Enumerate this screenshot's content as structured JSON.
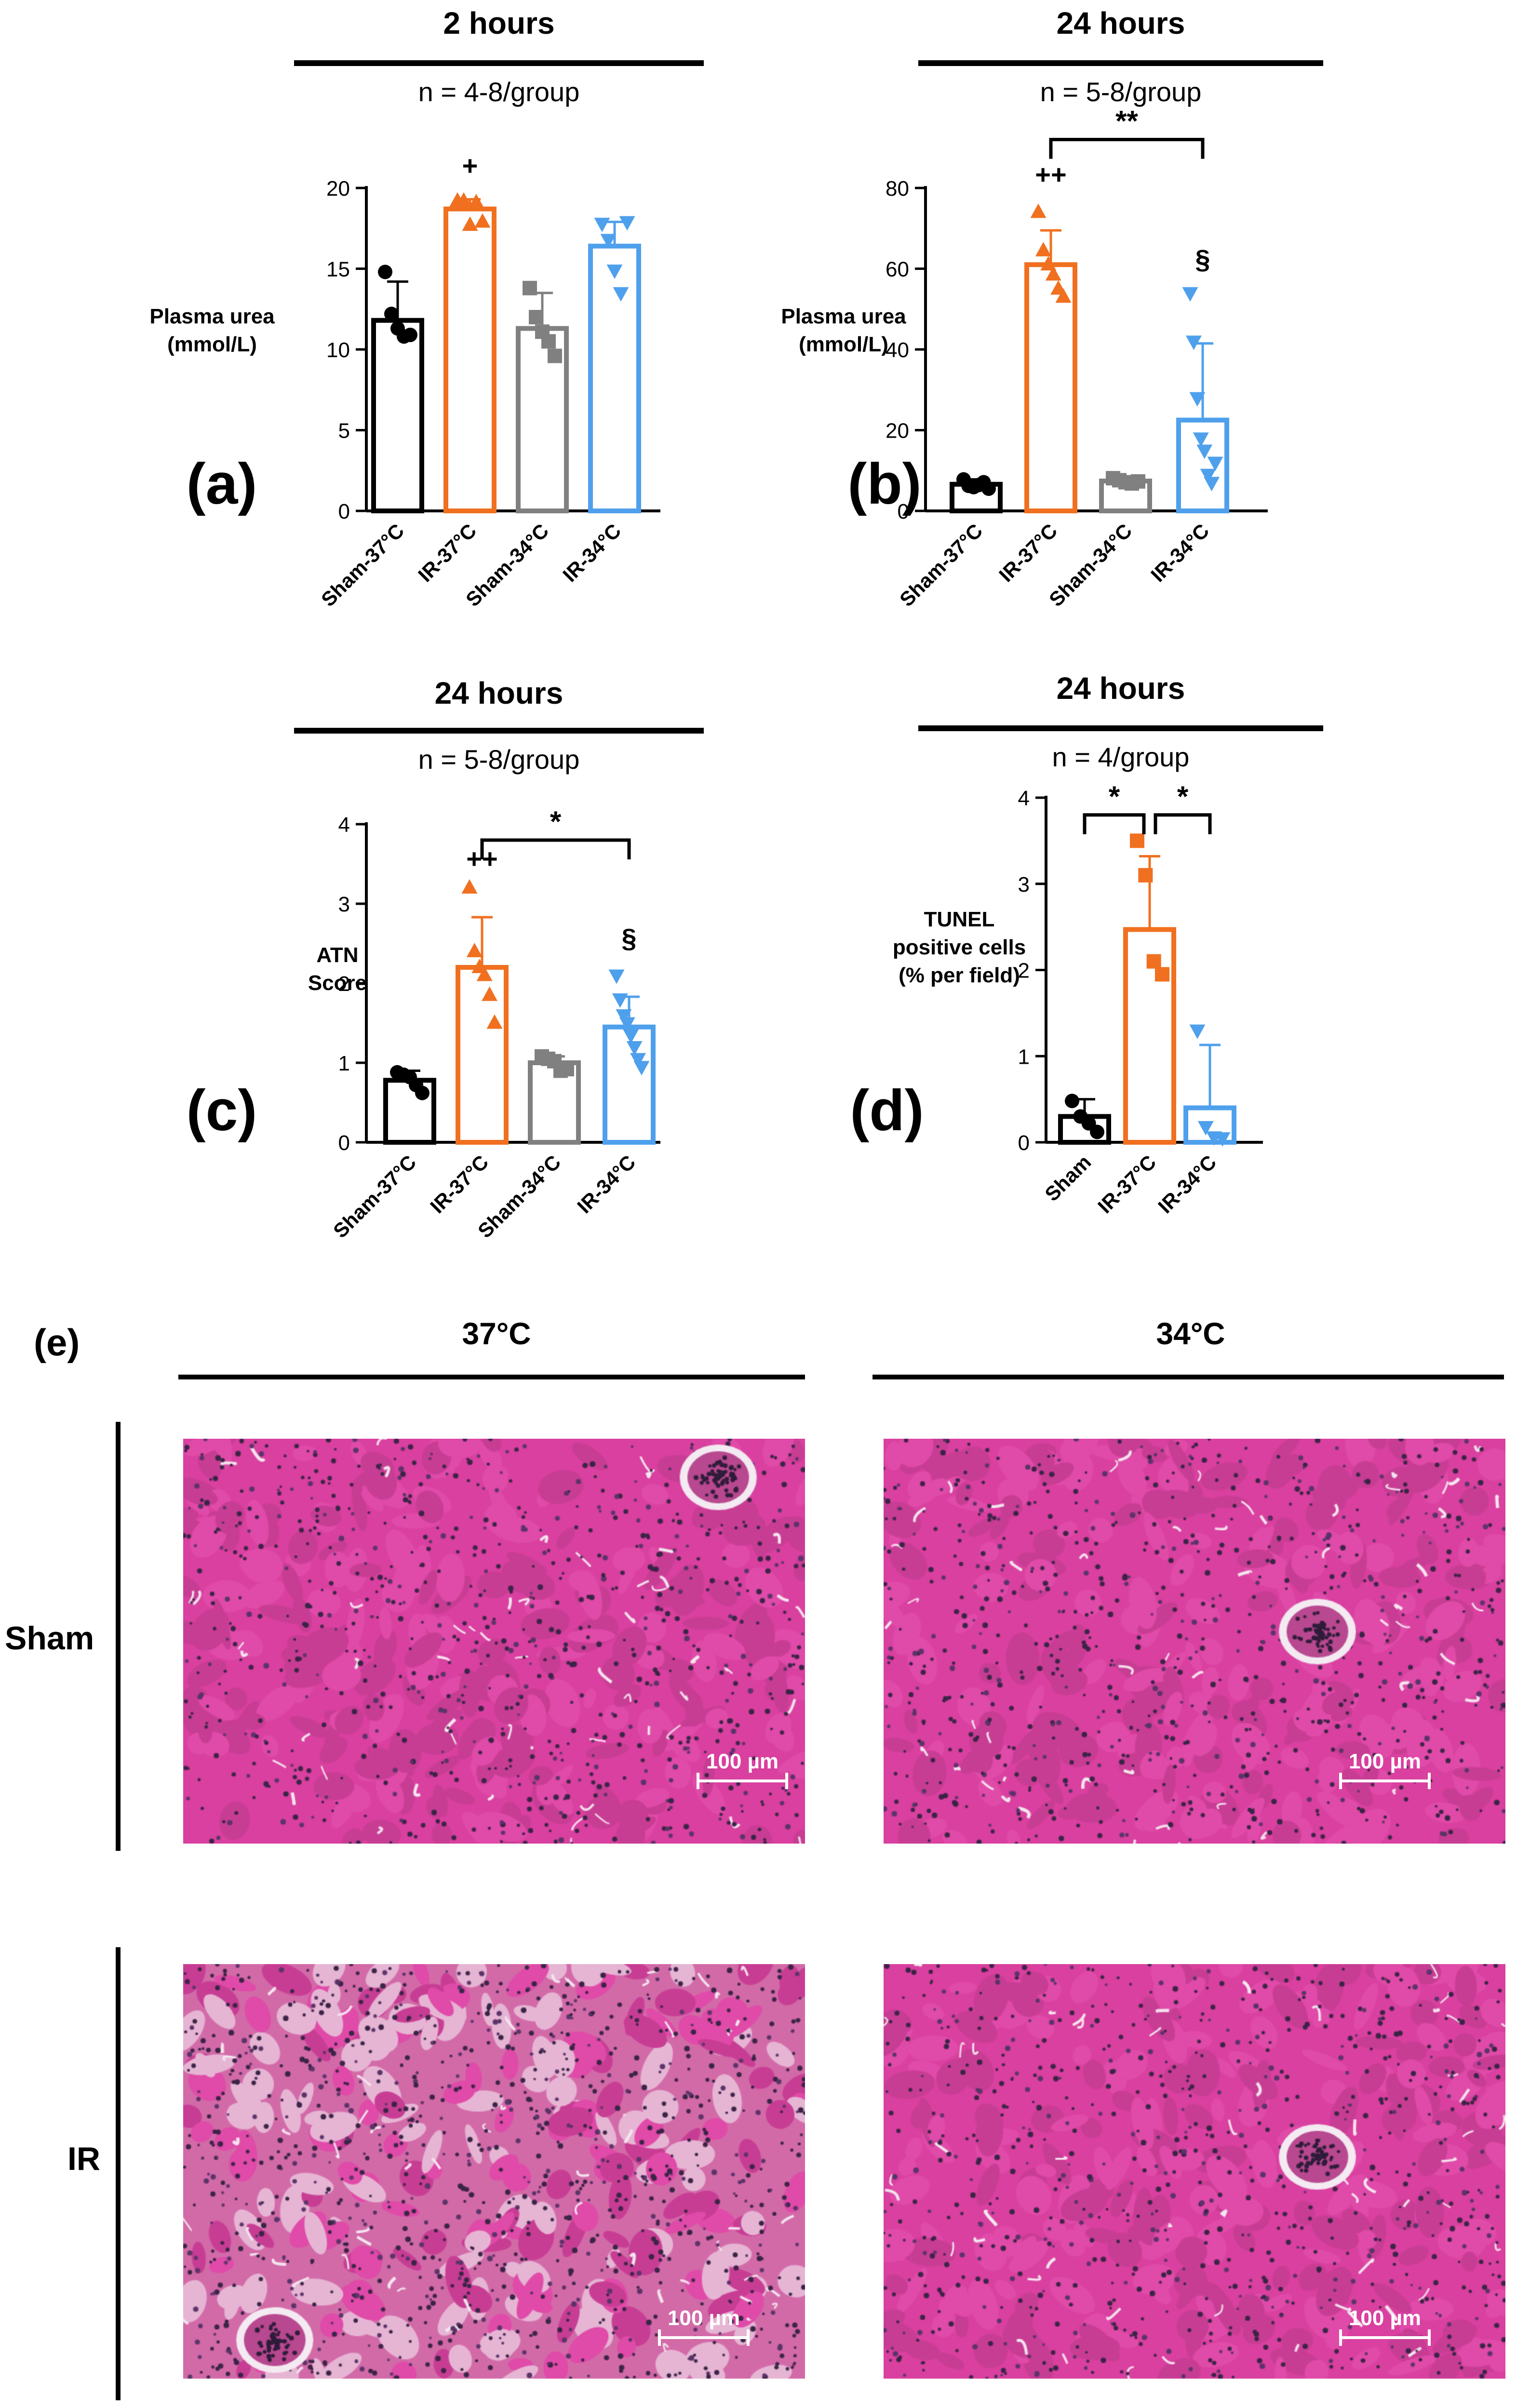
{
  "chart_data": [
    {
      "panel": "(a)",
      "type": "bar",
      "title": "2 hours",
      "subtitle": "n = 4-8/group",
      "ylabel": [
        "Plasma urea",
        "(mmol/L)"
      ],
      "ylim": [
        0,
        20
      ],
      "yticks": [
        0,
        5,
        10,
        15,
        20
      ],
      "categories": [
        "Sham-37°C",
        "IR-37°C",
        "Sham-34°C",
        "IR-34°C"
      ],
      "colors": [
        "#000000",
        "#f07020",
        "#808080",
        "#4fa0ec"
      ],
      "markers": [
        "circle",
        "triangle-up",
        "square",
        "triangle-down"
      ],
      "means": [
        11.8,
        18.7,
        11.3,
        16.4
      ],
      "errors": [
        2.4,
        0.6,
        2.2,
        1.5
      ],
      "points": [
        [
          14.8,
          12.2,
          11.3,
          10.8,
          10.9
        ],
        [
          19.2,
          19.2,
          17.7,
          19.1,
          17.9
        ],
        [
          13.8,
          12.0,
          11.1,
          10.5,
          9.6
        ],
        [
          17.8,
          16.8,
          14.9,
          13.5,
          17.9
        ]
      ],
      "annotations": [
        {
          "category": "IR-37°C",
          "text": "+",
          "y": 20.8
        }
      ],
      "brackets": []
    },
    {
      "panel": "(b)",
      "type": "bar",
      "title": "24 hours",
      "subtitle": "n = 5-8/group",
      "ylabel": [
        "Plasma urea",
        "(mmol/L)"
      ],
      "ylim": [
        0,
        80
      ],
      "yticks": [
        0,
        20,
        40,
        60,
        80
      ],
      "categories": [
        "Sham-37°C",
        "IR-37°C",
        "Sham-34°C",
        "IR-34°C"
      ],
      "colors": [
        "#000000",
        "#f07020",
        "#808080",
        "#4fa0ec"
      ],
      "markers": [
        "circle",
        "triangle-up",
        "square",
        "triangle-down"
      ],
      "means": [
        6.6,
        61.0,
        7.4,
        22.5
      ],
      "errors": [
        1.2,
        8.5,
        0.9,
        19.0
      ],
      "points": [
        [
          7.8,
          6.2,
          5.9,
          6.4,
          7.1,
          5.5
        ],
        [
          74.0,
          64.5,
          61.0,
          58.5,
          55.0,
          53.0
        ],
        [
          8.1,
          7.6,
          7.1,
          6.8,
          7.3
        ],
        [
          54.0,
          42.0,
          28.0,
          18.0,
          15.0,
          9.0,
          7.0,
          12.0
        ]
      ],
      "annotations": [
        {
          "category": "IR-37°C",
          "text": "++",
          "y": 81
        },
        {
          "category": "IR-34°C",
          "text": "§",
          "y": 60
        }
      ],
      "brackets": [
        {
          "from": 1,
          "to": 3,
          "text": "**",
          "y": 92
        }
      ]
    },
    {
      "panel": "(c)",
      "type": "bar",
      "title": "24 hours",
      "subtitle": "n = 5-8/group",
      "ylabel": [
        "ATN",
        "Score"
      ],
      "ylim": [
        0,
        4
      ],
      "yticks": [
        0,
        1,
        2,
        3,
        4
      ],
      "categories": [
        "Sham-37°C",
        "IR-37°C",
        "Sham-34°C",
        "IR-34°C"
      ],
      "colors": [
        "#000000",
        "#f07020",
        "#808080",
        "#4fa0ec"
      ],
      "markers": [
        "circle",
        "triangle-up",
        "square",
        "triangle-down"
      ],
      "means": [
        0.78,
        2.2,
        1.0,
        1.45
      ],
      "errors": [
        0.12,
        0.63,
        0.08,
        0.38
      ],
      "points": [
        [
          0.88,
          0.85,
          0.82,
          0.72,
          0.62
        ],
        [
          3.2,
          2.4,
          2.2,
          2.1,
          1.85,
          1.5
        ],
        [
          1.08,
          1.05,
          1.02,
          0.9,
          0.92
        ],
        [
          2.1,
          1.8,
          1.6,
          1.5,
          1.35,
          1.2,
          1.05,
          0.95
        ]
      ],
      "annotations": [
        {
          "category": "IR-37°C",
          "text": "++",
          "y": 3.45
        },
        {
          "category": "IR-34°C",
          "text": "§",
          "y": 2.45
        }
      ],
      "brackets": [
        {
          "from": 1,
          "to": 3,
          "text": "*",
          "y": 3.8
        }
      ]
    },
    {
      "panel": "(d)",
      "type": "bar",
      "title": "24 hours",
      "subtitle": "n = 4/group",
      "ylabel": [
        "TUNEL",
        "positive cells",
        "(% per field)"
      ],
      "ylim": [
        0,
        4
      ],
      "yticks": [
        0,
        1,
        2,
        3,
        4
      ],
      "categories": [
        "Sham",
        "IR-37°C",
        "IR-34°C"
      ],
      "colors": [
        "#000000",
        "#f07020",
        "#4fa0ec"
      ],
      "markers": [
        "circle",
        "square",
        "triangle-down"
      ],
      "means": [
        0.3,
        2.47,
        0.4
      ],
      "errors": [
        0.2,
        0.85,
        0.73
      ],
      "points": [
        [
          0.48,
          0.3,
          0.22,
          0.12
        ],
        [
          3.5,
          3.1,
          2.1,
          1.95
        ],
        [
          1.3,
          0.18,
          0.06,
          0.05
        ]
      ],
      "annotations": [],
      "brackets": [
        {
          "from": 0,
          "to": 1,
          "text": "*",
          "y": 3.8
        },
        {
          "from": 1,
          "to": 2,
          "text": "*",
          "y": 3.8
        }
      ]
    }
  ],
  "histology": {
    "panel": "(e)",
    "columns": [
      "37°C",
      "34°C"
    ],
    "rows": [
      "Sham",
      "IR"
    ],
    "scalebar": "100 µm"
  },
  "colors": {
    "tissue_base": "#d9409f",
    "nuclei": "#3a2446",
    "lumen": "#f4eaf2"
  }
}
